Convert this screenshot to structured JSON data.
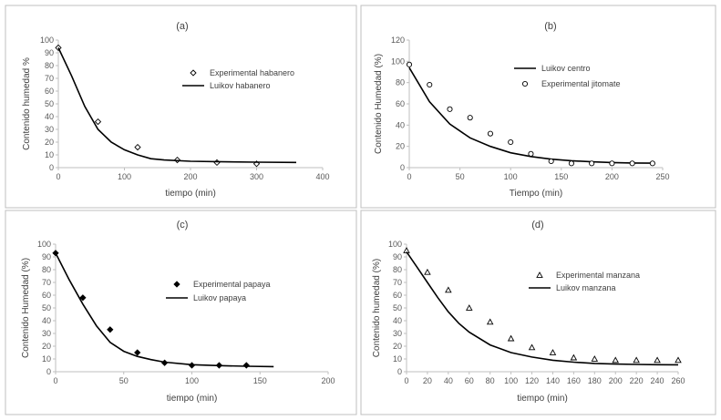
{
  "chart_data": [
    {
      "type": "scatter",
      "title": "(a)",
      "xlabel": "tiempo (min)",
      "ylabel": "Contenido humedad %",
      "xlim": [
        0,
        400
      ],
      "ylim": [
        0,
        100
      ],
      "xticks": [
        0,
        100,
        200,
        300,
        400
      ],
      "yticks": [
        0,
        10,
        20,
        30,
        40,
        50,
        60,
        70,
        80,
        90,
        100
      ],
      "legend_position": "right",
      "series": [
        {
          "name": "Experimental habanero",
          "kind": "points",
          "marker": "diamond-open",
          "x": [
            0,
            60,
            120,
            180,
            240,
            300
          ],
          "y": [
            94,
            36,
            16,
            6,
            4,
            3
          ]
        },
        {
          "name": "Luikov habanero",
          "kind": "line",
          "x": [
            0,
            20,
            40,
            60,
            80,
            100,
            120,
            140,
            160,
            200,
            250,
            300,
            360
          ],
          "y": [
            94,
            72,
            48,
            30,
            20,
            14,
            10,
            7,
            6,
            5,
            4.6,
            4.3,
            4.1
          ]
        }
      ]
    },
    {
      "type": "scatter",
      "title": "(b)",
      "xlabel": "Tiempo (min)",
      "ylabel": "Contenido Humedad (%)",
      "xlim": [
        0,
        250
      ],
      "ylim": [
        0,
        120
      ],
      "xticks": [
        0,
        50,
        100,
        150,
        200,
        250
      ],
      "yticks": [
        0,
        20,
        40,
        60,
        80,
        100,
        120
      ],
      "legend_position": "right",
      "series": [
        {
          "name": "Luikov centro",
          "kind": "line",
          "x": [
            0,
            20,
            40,
            60,
            80,
            100,
            120,
            140,
            160,
            180,
            200,
            220,
            240
          ],
          "y": [
            94,
            62,
            41,
            28,
            20,
            14,
            10.5,
            8,
            6.5,
            5.5,
            4.8,
            4.4,
            4.2
          ]
        },
        {
          "name": "Experimental jitomate",
          "kind": "points",
          "marker": "circle-open",
          "x": [
            0,
            20,
            40,
            60,
            80,
            100,
            120,
            140,
            160,
            180,
            200,
            220,
            240
          ],
          "y": [
            97,
            78,
            55,
            47,
            32,
            24,
            13,
            6,
            4,
            4,
            4,
            4,
            4
          ]
        }
      ]
    },
    {
      "type": "scatter",
      "title": "(c)",
      "xlabel": "tiempo (min)",
      "ylabel": "Contenido Humedad (%)",
      "xlim": [
        0,
        200
      ],
      "ylim": [
        0,
        100
      ],
      "xticks": [
        0,
        50,
        100,
        150,
        200
      ],
      "yticks": [
        0,
        10,
        20,
        30,
        40,
        50,
        60,
        70,
        80,
        90,
        100
      ],
      "legend_position": "right",
      "series": [
        {
          "name": "Experimental papaya",
          "kind": "points",
          "marker": "diamond-filled",
          "x": [
            0,
            20,
            40,
            60,
            80,
            100,
            120,
            140
          ],
          "y": [
            93,
            58,
            33,
            15,
            7,
            5,
            5,
            5
          ]
        },
        {
          "name": "Luikov papaya",
          "kind": "line",
          "x": [
            0,
            10,
            20,
            30,
            40,
            50,
            60,
            70,
            80,
            100,
            120,
            140,
            160
          ],
          "y": [
            93,
            72,
            53,
            36,
            23,
            16,
            12,
            9.5,
            7.5,
            5.5,
            4.8,
            4.3,
            4.0
          ]
        }
      ]
    },
    {
      "type": "scatter",
      "title": "(d)",
      "xlabel": "tiempo (min)",
      "ylabel": "Contenido humedad (%)",
      "xlim": [
        0,
        260
      ],
      "ylim": [
        0,
        100
      ],
      "xticks": [
        0,
        20,
        40,
        60,
        80,
        100,
        120,
        140,
        160,
        180,
        200,
        220,
        240,
        260
      ],
      "yticks": [
        0,
        10,
        20,
        30,
        40,
        50,
        60,
        70,
        80,
        90,
        100
      ],
      "legend_position": "right",
      "series": [
        {
          "name": "Experimental manzana",
          "kind": "points",
          "marker": "triangle-open",
          "x": [
            0,
            20,
            40,
            60,
            80,
            100,
            120,
            140,
            160,
            180,
            200,
            220,
            240,
            260
          ],
          "y": [
            95,
            78,
            64,
            50,
            39,
            26,
            19,
            15,
            11,
            10,
            9,
            9,
            9,
            9
          ]
        },
        {
          "name": "Luikov manzana",
          "kind": "line",
          "x": [
            0,
            10,
            20,
            30,
            40,
            50,
            60,
            80,
            100,
            120,
            140,
            160,
            180,
            200,
            220,
            240,
            260
          ],
          "y": [
            94,
            82,
            70,
            58,
            47,
            38,
            31,
            21,
            15,
            11.5,
            9,
            7.5,
            6.5,
            6,
            5.7,
            5.5,
            5.4
          ]
        }
      ]
    }
  ]
}
